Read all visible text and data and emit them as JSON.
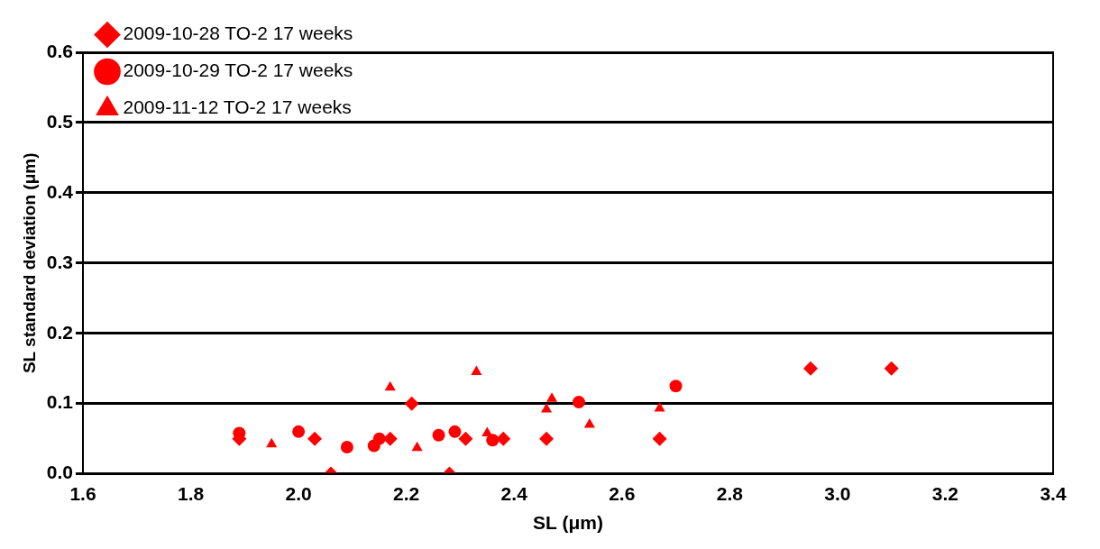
{
  "chart_data": {
    "type": "scatter",
    "xlabel": "SL (μm)",
    "ylabel": "SL standard deviation (μm)",
    "xlim": [
      1.6,
      3.4
    ],
    "xticks": [
      {
        "value": 1.6,
        "label": "1.6"
      },
      {
        "value": 1.8,
        "label": "1.8"
      },
      {
        "value": 2.0,
        "label": "2.0"
      },
      {
        "value": 2.2,
        "label": "2.2"
      },
      {
        "value": 2.4,
        "label": "2.4"
      },
      {
        "value": 2.6,
        "label": "2.6"
      },
      {
        "value": 2.8,
        "label": "2.8"
      },
      {
        "value": 3.0,
        "label": "3.0"
      },
      {
        "value": 3.2,
        "label": "3.2"
      },
      {
        "value": 3.4,
        "label": "3.4"
      }
    ],
    "ylim": [
      0,
      0.6
    ],
    "yticks": [
      {
        "value": 0,
        "label": "0.0"
      },
      {
        "value": 0.1,
        "label": "0.1"
      },
      {
        "value": 0.2,
        "label": "0.2"
      },
      {
        "value": 0.3,
        "label": "0.3"
      },
      {
        "value": 0.4,
        "label": "0.4"
      },
      {
        "value": 0.5,
        "label": "0.5"
      },
      {
        "value": 0.6,
        "label": "0.6"
      }
    ],
    "grid": "y",
    "legend": "top left",
    "series": [
      {
        "name": "2009-10-28 TO-2 17 weeks",
        "color": "#ff0000",
        "marker": "diamond",
        "x": [
          1.89,
          2.03,
          2.06,
          2.17,
          2.21,
          2.28,
          2.31,
          2.38,
          2.46,
          2.67,
          2.95,
          3.1
        ],
        "values": [
          0.05,
          0.05,
          0.0,
          0.05,
          0.1,
          0.0,
          0.05,
          0.05,
          0.05,
          0.05,
          0.15,
          0.15
        ]
      },
      {
        "name": "2009-10-29 TO-2 17 weeks",
        "color": "#ff0000",
        "marker": "circle",
        "x": [
          1.89,
          2.0,
          2.09,
          2.14,
          2.15,
          2.26,
          2.29,
          2.36,
          2.52,
          2.7
        ],
        "values": [
          0.058,
          0.06,
          0.038,
          0.04,
          0.05,
          0.055,
          0.06,
          0.048,
          0.102,
          0.125
        ]
      },
      {
        "name": "2009-11-12 TO-2 17 weeks",
        "color": "#ff0000",
        "marker": "triangle",
        "x": [
          1.95,
          2.17,
          2.22,
          2.33,
          2.35,
          2.46,
          2.47,
          2.54,
          2.67
        ],
        "values": [
          0.042,
          0.123,
          0.037,
          0.145,
          0.058,
          0.092,
          0.107,
          0.07,
          0.093
        ]
      }
    ]
  }
}
